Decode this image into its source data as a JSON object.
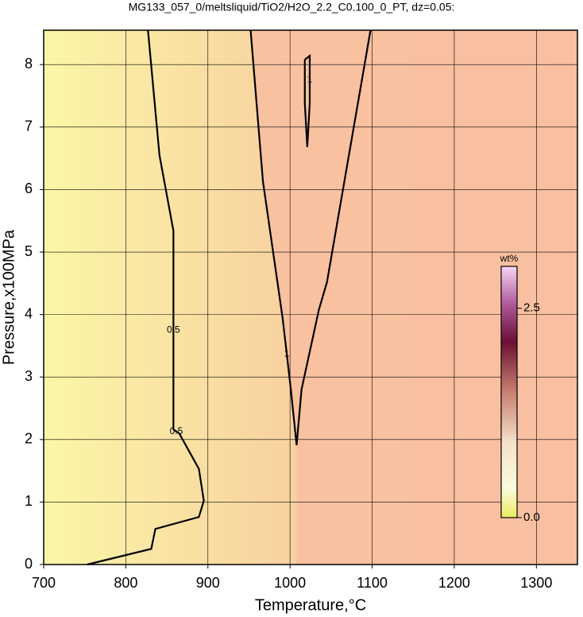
{
  "chart_data": {
    "type": "contour",
    "title": "MG133_057_0/meltsliquid/TiO2/H2O_2.2_C0.100_0_PT, dz=0.05:",
    "x_label": "Temperature,°C",
    "y_label": "Pressure,x100MPa",
    "xlim": [
      700,
      1350
    ],
    "ylim": [
      0,
      8.55
    ],
    "xticks": [
      700,
      800,
      900,
      1000,
      1100,
      1200,
      1300
    ],
    "yticks": [
      0,
      1,
      2,
      3,
      4,
      5,
      6,
      7,
      8
    ],
    "grid": true,
    "contours": [
      {
        "level": 0.5,
        "x": [
          827,
          841,
          858,
          858,
          865,
          889,
          895,
          889,
          836,
          831,
          753
        ],
        "y": [
          8.55,
          6.55,
          5.34,
          2.16,
          2.1,
          1.53,
          1.02,
          0.76,
          0.57,
          0.25,
          0
        ]
      },
      {
        "level": 1,
        "x": [
          952,
          967,
          991,
          1001,
          1008,
          1014,
          1035,
          1045,
          1098
        ],
        "y": [
          8.55,
          6.13,
          3.94,
          2.8,
          1.91,
          2.8,
          4.07,
          4.52,
          8.55
        ]
      },
      {
        "level": 1,
        "x": [
          1018,
          1024,
          1024,
          1021,
          1018,
          1018
        ],
        "y": [
          8.08,
          8.14,
          7.38,
          6.68,
          7.38,
          8.08
        ]
      }
    ],
    "colorbar": {
      "label": "wt%",
      "lim": [
        0,
        3.0
      ],
      "ticks": [
        {
          "value": 0,
          "label": "0.0"
        },
        {
          "value": 2.5,
          "label": "2.5"
        }
      ]
    }
  }
}
